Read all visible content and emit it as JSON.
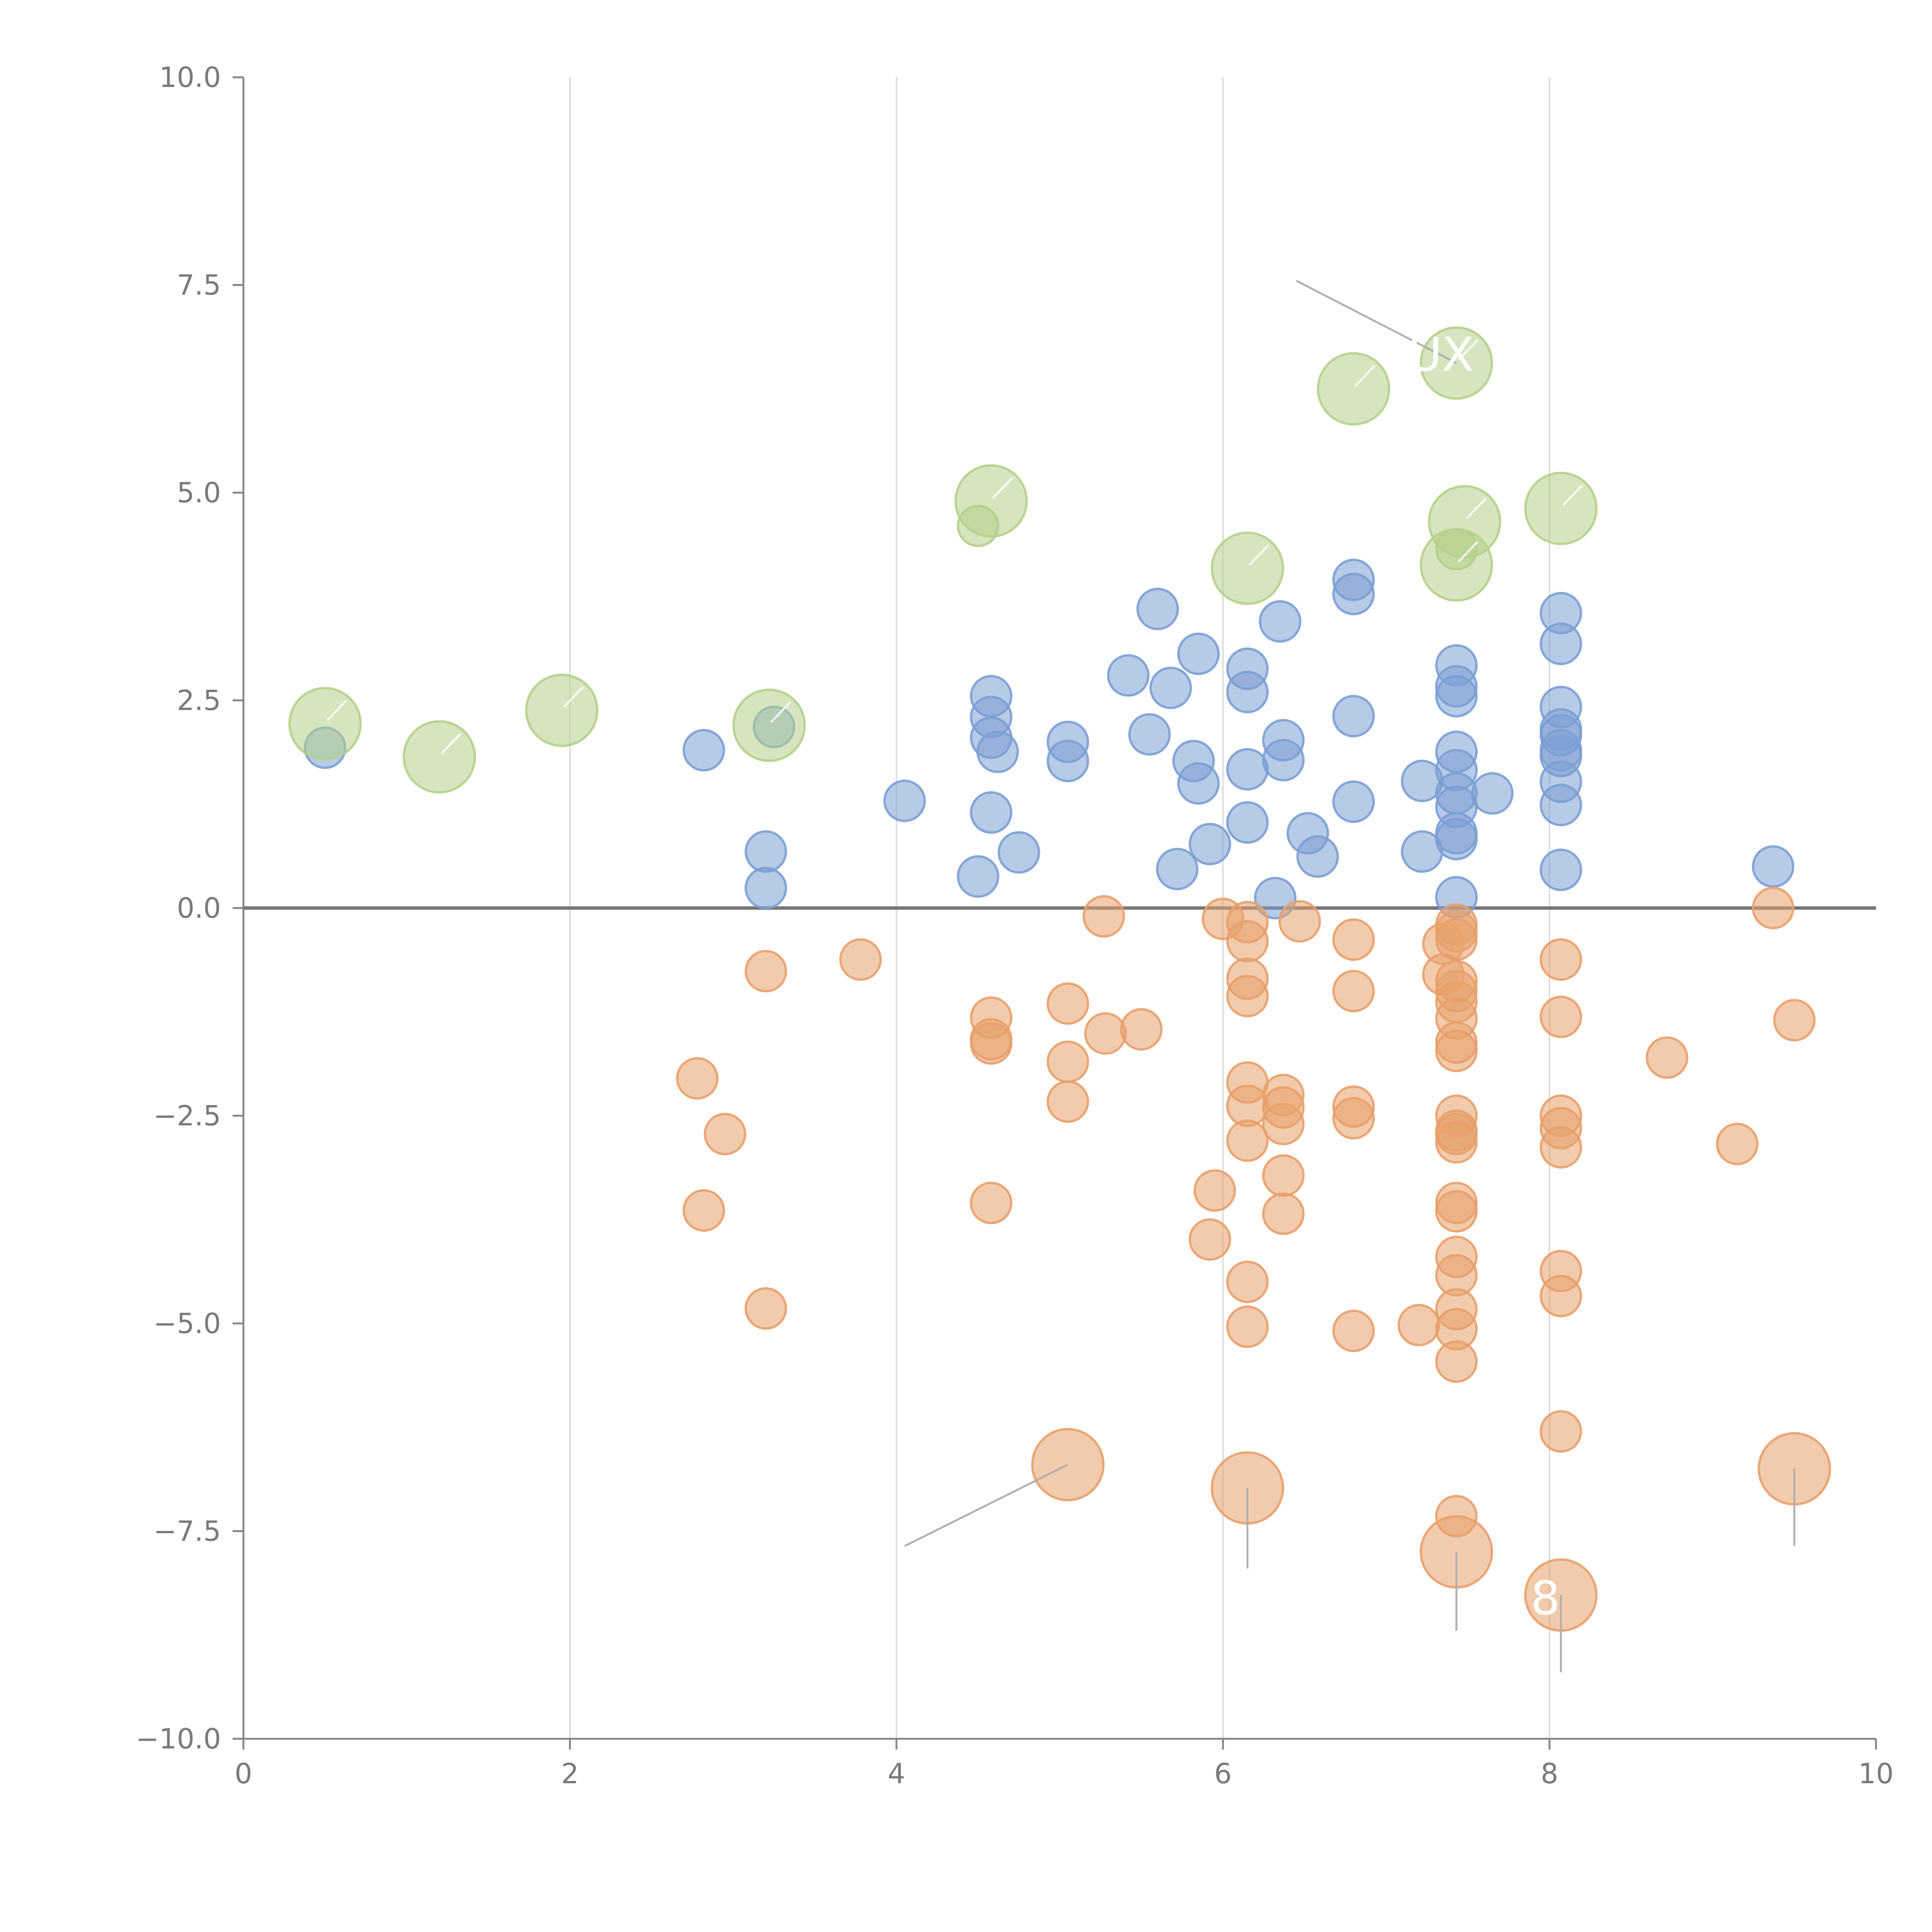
{
  "chart_data": {
    "type": "scatter",
    "title": "",
    "xlabel": "",
    "ylabel": "",
    "xlim": [
      0,
      10
    ],
    "ylim": [
      -10,
      10
    ],
    "x_ticks": [
      "0",
      "2",
      "4",
      "6",
      "8",
      "10"
    ],
    "y_ticks": [
      "10.0",
      "7.5",
      "5.0",
      "2.5",
      "0.0",
      "−2.5",
      "−5.0",
      "−7.5",
      "−10.0"
    ],
    "x_tick_values": [
      0,
      2,
      4,
      6,
      8,
      10
    ],
    "y_tick_values": [
      10,
      7.5,
      5,
      2.5,
      0,
      -2.5,
      -5,
      -7.5,
      -10
    ],
    "vertical_gridlines": [
      2,
      4,
      6,
      8
    ],
    "zero_line": 0,
    "colors": {
      "blue": "#7b9fd4",
      "orange": "#e8a06a",
      "green": "#b5d08a",
      "axis": "#888888",
      "grid": "#dddddd",
      "zero_line": "#777777",
      "leader": "#b0b0b0"
    },
    "series": [
      {
        "name": "blue",
        "color": "#7b9fd4",
        "size": "small",
        "points": [
          [
            0.5,
            1.93
          ],
          [
            2.82,
            1.9
          ],
          [
            3.25,
            2.18
          ],
          [
            3.2,
            0.68
          ],
          [
            3.2,
            0.24
          ],
          [
            4.05,
            1.29
          ],
          [
            4.5,
            0.38
          ],
          [
            4.58,
            2.55
          ],
          [
            4.58,
            2.3
          ],
          [
            4.58,
            2.05
          ],
          [
            4.62,
            1.88
          ],
          [
            4.58,
            1.15
          ],
          [
            4.75,
            0.67
          ],
          [
            5.05,
            2.0
          ],
          [
            5.05,
            1.77
          ],
          [
            5.42,
            2.8
          ],
          [
            5.6,
            3.6
          ],
          [
            5.55,
            2.09
          ],
          [
            5.68,
            2.65
          ],
          [
            5.72,
            0.47
          ],
          [
            5.85,
            3.06
          ],
          [
            5.82,
            1.77
          ],
          [
            5.85,
            1.5
          ],
          [
            5.92,
            0.77
          ],
          [
            6.15,
            2.88
          ],
          [
            6.15,
            2.6
          ],
          [
            6.15,
            1.67
          ],
          [
            6.15,
            1.03
          ],
          [
            6.32,
            0.12
          ],
          [
            6.35,
            3.45
          ],
          [
            6.37,
            2.02
          ],
          [
            6.37,
            1.78
          ],
          [
            6.52,
            0.9
          ],
          [
            6.58,
            0.62
          ],
          [
            6.8,
            3.95
          ],
          [
            6.8,
            3.78
          ],
          [
            6.8,
            2.31
          ],
          [
            6.8,
            1.28
          ],
          [
            7.22,
            1.53
          ],
          [
            7.22,
            0.68
          ],
          [
            7.43,
            2.92
          ],
          [
            7.43,
            2.67
          ],
          [
            7.43,
            2.55
          ],
          [
            7.43,
            1.88
          ],
          [
            7.43,
            1.66
          ],
          [
            7.43,
            1.38
          ],
          [
            7.43,
            1.22
          ],
          [
            7.43,
            0.9
          ],
          [
            7.43,
            0.83
          ],
          [
            7.43,
            0.13
          ],
          [
            7.65,
            1.38
          ],
          [
            8.07,
            3.55
          ],
          [
            8.07,
            3.18
          ],
          [
            8.07,
            2.42
          ],
          [
            8.07,
            2.15
          ],
          [
            8.07,
            2.08
          ],
          [
            8.07,
            1.9
          ],
          [
            8.07,
            1.83
          ],
          [
            8.07,
            1.52
          ],
          [
            8.07,
            1.24
          ],
          [
            8.07,
            0.46
          ],
          [
            9.37,
            0.5
          ]
        ]
      },
      {
        "name": "orange",
        "color": "#e8a06a",
        "size": "small",
        "points": [
          [
            2.78,
            -2.05
          ],
          [
            2.95,
            -2.72
          ],
          [
            2.82,
            -3.64
          ],
          [
            3.2,
            -0.76
          ],
          [
            3.2,
            -4.82
          ],
          [
            3.78,
            -0.62
          ],
          [
            4.58,
            -1.32
          ],
          [
            4.58,
            -1.58
          ],
          [
            4.58,
            -1.63
          ],
          [
            4.58,
            -3.55
          ],
          [
            5.05,
            -1.15
          ],
          [
            5.05,
            -1.85
          ],
          [
            5.05,
            -2.33
          ],
          [
            5.27,
            -0.1
          ],
          [
            5.28,
            -1.51
          ],
          [
            5.5,
            -1.46
          ],
          [
            5.95,
            -3.4
          ],
          [
            5.92,
            -3.99
          ],
          [
            6.0,
            -0.13
          ],
          [
            6.15,
            -0.17
          ],
          [
            6.15,
            -0.4
          ],
          [
            6.15,
            -0.85
          ],
          [
            6.15,
            -1.06
          ],
          [
            6.15,
            -2.1
          ],
          [
            6.15,
            -2.38
          ],
          [
            6.15,
            -2.8
          ],
          [
            6.15,
            -4.5
          ],
          [
            6.15,
            -5.04
          ],
          [
            6.37,
            -2.25
          ],
          [
            6.37,
            -2.4
          ],
          [
            6.37,
            -2.6
          ],
          [
            6.37,
            -3.22
          ],
          [
            6.37,
            -3.68
          ],
          [
            6.47,
            -0.16
          ],
          [
            6.8,
            -0.38
          ],
          [
            6.8,
            -1.0
          ],
          [
            6.8,
            -2.39
          ],
          [
            6.8,
            -2.53
          ],
          [
            6.8,
            -5.09
          ],
          [
            7.2,
            -5.02
          ],
          [
            7.35,
            -0.43
          ],
          [
            7.35,
            -0.8
          ],
          [
            7.43,
            -0.2
          ],
          [
            7.43,
            -0.28
          ],
          [
            7.43,
            -0.38
          ],
          [
            7.43,
            -0.88
          ],
          [
            7.43,
            -1.0
          ],
          [
            7.43,
            -1.13
          ],
          [
            7.43,
            -1.33
          ],
          [
            7.43,
            -1.62
          ],
          [
            7.43,
            -1.72
          ],
          [
            7.43,
            -2.5
          ],
          [
            7.43,
            -2.68
          ],
          [
            7.43,
            -2.72
          ],
          [
            7.43,
            -2.82
          ],
          [
            7.43,
            -3.55
          ],
          [
            7.43,
            -3.65
          ],
          [
            7.43,
            -4.2
          ],
          [
            7.43,
            -4.42
          ],
          [
            7.43,
            -4.83
          ],
          [
            7.43,
            -5.07
          ],
          [
            7.43,
            -5.46
          ],
          [
            7.43,
            -7.32
          ],
          [
            8.07,
            -0.62
          ],
          [
            8.07,
            -1.31
          ],
          [
            8.07,
            -2.5
          ],
          [
            8.07,
            -2.65
          ],
          [
            8.07,
            -2.88
          ],
          [
            8.07,
            -4.37
          ],
          [
            8.07,
            -4.67
          ],
          [
            8.07,
            -6.3
          ],
          [
            8.72,
            -1.8
          ],
          [
            9.15,
            -2.84
          ],
          [
            9.37,
            0.0
          ],
          [
            9.5,
            -1.35
          ]
        ]
      },
      {
        "name": "green",
        "color": "#b5d08a",
        "size": "mixed",
        "points": [
          [
            0.5,
            2.22,
            "large"
          ],
          [
            1.2,
            1.82,
            "large"
          ],
          [
            1.95,
            2.38,
            "large"
          ],
          [
            3.22,
            2.2,
            "large"
          ],
          [
            4.5,
            4.6,
            "small"
          ],
          [
            4.58,
            4.9,
            "large"
          ],
          [
            6.15,
            4.09,
            "large"
          ],
          [
            6.8,
            6.25,
            "large"
          ],
          [
            7.43,
            6.56,
            "large"
          ],
          [
            7.48,
            4.65,
            "large"
          ],
          [
            7.43,
            4.32,
            "small"
          ],
          [
            7.43,
            4.13,
            "large"
          ],
          [
            8.07,
            4.81,
            "large"
          ]
        ]
      },
      {
        "name": "orange-large",
        "color": "#e8a06a",
        "size": "large",
        "points": [
          [
            5.05,
            -6.7
          ],
          [
            6.15,
            -6.98
          ],
          [
            7.43,
            -7.75
          ],
          [
            8.07,
            -8.27
          ],
          [
            9.5,
            -6.75
          ]
        ]
      }
    ],
    "annotations": [
      {
        "text": "UX",
        "x": 7.43,
        "y": 6.56,
        "leader_from": [
          6.45,
          7.55
        ]
      },
      {
        "text": "8",
        "x": 8.07,
        "y": -8.27,
        "leader_from": [
          8.07,
          -9.2
        ]
      },
      {
        "text": "",
        "x": 5.05,
        "y": -6.7,
        "leader_from": [
          4.05,
          -7.68
        ]
      },
      {
        "text": "",
        "x": 6.15,
        "y": -6.98,
        "leader_from": [
          6.15,
          -7.95
        ]
      },
      {
        "text": "",
        "x": 7.43,
        "y": -7.75,
        "leader_from": [
          7.43,
          -8.7
        ]
      },
      {
        "text": "",
        "x": 9.5,
        "y": -6.75,
        "leader_from": [
          9.5,
          -7.68
        ]
      }
    ]
  }
}
